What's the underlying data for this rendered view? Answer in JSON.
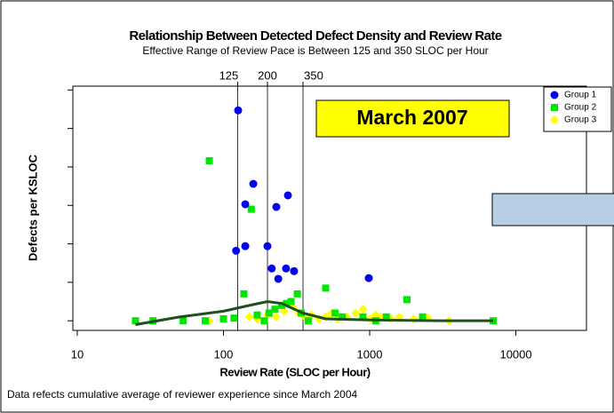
{
  "chart_data": {
    "type": "scatter",
    "title": "Relationship Between Detected Defect Density and Review Rate",
    "subtitle": "Effective Range of Review Pace is Between 125 and 350 SLOC per Hour",
    "annotation": "March 2007",
    "footnote": "Data refects cumulative average of reviewer experience since March 2004",
    "x_label": "Review Rate (SLOC per Hour)",
    "y_label": "Defects per KSLOC",
    "log_x": true,
    "xlim": [
      9.33,
      30400
    ],
    "xticks": [
      10,
      100,
      1000,
      10000
    ],
    "ylim": [
      -0.25,
      6.1
    ],
    "yticks": [
      0,
      1,
      2,
      3,
      4,
      5,
      6
    ],
    "vlines": [
      125,
      200,
      350
    ],
    "legend": "top-right",
    "series": [
      {
        "name": "Group 1",
        "color": "#0000ee",
        "marker": "circle",
        "x": [
          126,
          141,
          160,
          230,
          276,
          122,
          141,
          200,
          214,
          237,
          268,
          304,
          986
        ],
        "values": [
          5.47,
          3.03,
          3.56,
          2.96,
          3.26,
          1.82,
          1.94,
          1.94,
          1.36,
          1.09,
          1.36,
          1.29,
          1.11
        ]
      },
      {
        "name": "Group 2",
        "color": "#00e600",
        "marker": "square",
        "x": [
          25,
          33,
          53,
          75,
          100,
          118,
          138,
          155,
          170,
          190,
          205,
          225,
          250,
          270,
          290,
          320,
          340,
          380,
          500,
          580,
          650,
          900,
          1100,
          1300,
          1800,
          2300,
          7000,
          80
        ],
        "values": [
          0,
          0,
          0,
          0,
          0.05,
          0.07,
          0.7,
          2.9,
          0.15,
          0,
          0.2,
          0.3,
          0.4,
          0.45,
          0.5,
          0.7,
          0.2,
          0,
          0.85,
          0.2,
          0.1,
          0.1,
          0,
          0.1,
          0.55,
          0.1,
          0,
          4.16
        ]
      },
      {
        "name": "Group 3",
        "color": "#ffff00",
        "marker": "diamond",
        "x": [
          80,
          150,
          170,
          200,
          230,
          260,
          300,
          330,
          360,
          400,
          450,
          500,
          550,
          600,
          700,
          800,
          900,
          1000,
          1100,
          1200,
          1400,
          1600,
          2000,
          2500,
          3500
        ],
        "values": [
          0,
          0.1,
          0.05,
          0.15,
          0.1,
          0.25,
          0.35,
          0.2,
          0.1,
          0.15,
          0.05,
          0.1,
          0.2,
          0.05,
          0.1,
          0.2,
          0.3,
          0.05,
          0.15,
          0.1,
          0.05,
          0.1,
          0.05,
          0.08,
          0
        ]
      }
    ],
    "fit": {
      "color": "#1f4f1f",
      "x": [
        25,
        50,
        100,
        150,
        200,
        250,
        350,
        500,
        1000,
        3000,
        7000
      ],
      "values": [
        -0.1,
        0.1,
        0.25,
        0.4,
        0.5,
        0.45,
        0.2,
        0.05,
        0.02,
        0,
        0
      ]
    }
  }
}
